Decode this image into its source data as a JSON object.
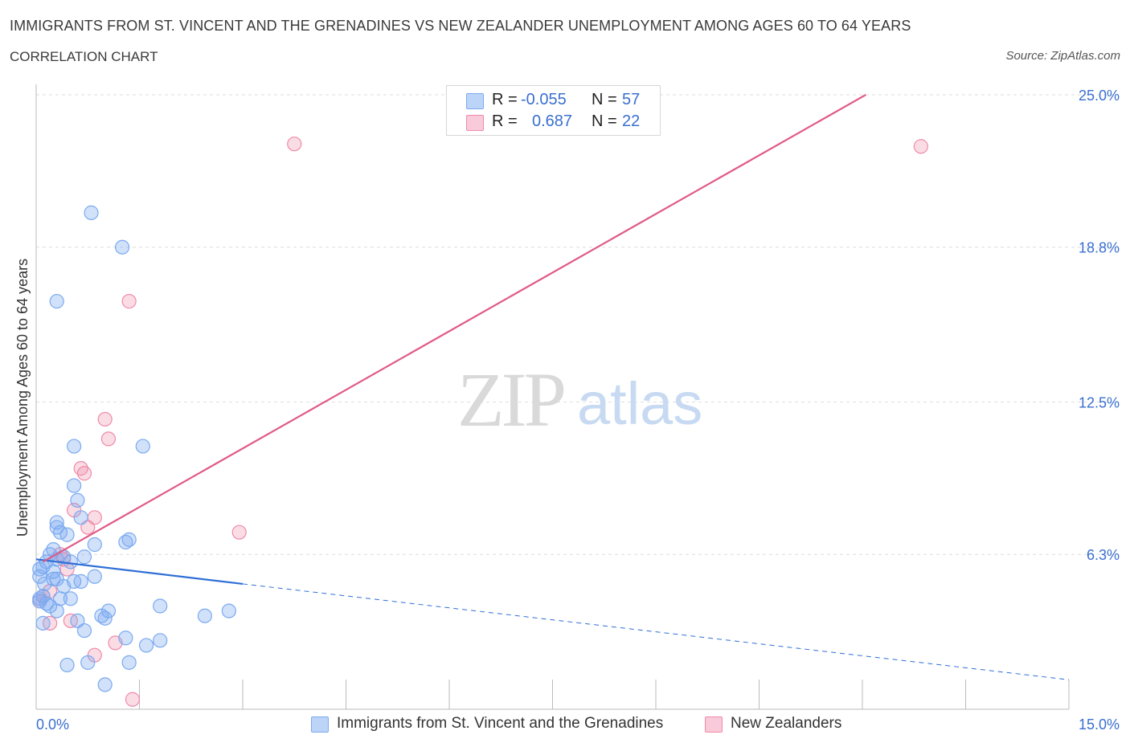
{
  "header": {
    "title": "IMMIGRANTS FROM ST. VINCENT AND THE GRENADINES VS NEW ZEALANDER UNEMPLOYMENT AMONG AGES 60 TO 64 YEARS",
    "subtitle": "CORRELATION CHART",
    "source": "Source: ZipAtlas.com"
  },
  "watermark": {
    "zip": "ZIP",
    "atlas": "atlas"
  },
  "legend": {
    "rows": [
      {
        "r_label": "R =",
        "r_value": "-0.055",
        "n_label": "N =",
        "n_value": "57"
      },
      {
        "r_label": "R =",
        "r_value": "0.687",
        "n_label": "N =",
        "n_value": "22"
      }
    ]
  },
  "chart_data": {
    "type": "scatter",
    "title": "Immigrants from St. Vincent and the Grenadines vs New Zealander Unemployment Among Ages 60 to 64 Years",
    "xlabel": "",
    "ylabel": "Unemployment Among Ages 60 to 64 years",
    "xlim": [
      0,
      15
    ],
    "ylim": [
      0,
      25
    ],
    "x_tick_labels": [
      "0.0%",
      "15.0%"
    ],
    "y_ticks": [
      6.3,
      12.5,
      18.8,
      25.0
    ],
    "y_tick_labels": [
      "6.3%",
      "12.5%",
      "18.8%",
      "25.0%"
    ],
    "grid": true,
    "legend_position": "bottom",
    "series": [
      {
        "name": "Immigrants from St. Vincent and the Grenadines",
        "color": "#7aaaf0",
        "fill": "rgba(122,170,240,0.35)",
        "line_color": "#2f6fd6",
        "R": -0.055,
        "N": 57,
        "trend": {
          "x0": 0.0,
          "y0": 6.1,
          "x1": 3.0,
          "y1": 5.1,
          "x_dash_end": 15.0,
          "y_dash_end": 1.2
        },
        "points": [
          [
            0.8,
            20.2
          ],
          [
            1.25,
            18.8
          ],
          [
            0.3,
            16.6
          ],
          [
            0.55,
            10.7
          ],
          [
            1.55,
            10.7
          ],
          [
            0.55,
            9.1
          ],
          [
            0.6,
            8.5
          ],
          [
            0.3,
            7.6
          ],
          [
            0.3,
            7.4
          ],
          [
            0.45,
            7.1
          ],
          [
            0.35,
            7.2
          ],
          [
            0.65,
            7.8
          ],
          [
            0.85,
            6.7
          ],
          [
            1.35,
            6.9
          ],
          [
            1.3,
            6.8
          ],
          [
            0.25,
            6.5
          ],
          [
            0.2,
            6.3
          ],
          [
            0.4,
            6.2
          ],
          [
            0.7,
            6.2
          ],
          [
            0.15,
            6.0
          ],
          [
            0.3,
            6.1
          ],
          [
            0.5,
            6.0
          ],
          [
            0.05,
            5.7
          ],
          [
            0.1,
            5.8
          ],
          [
            0.25,
            5.6
          ],
          [
            0.05,
            5.4
          ],
          [
            0.3,
            5.3
          ],
          [
            0.55,
            5.2
          ],
          [
            0.85,
            5.4
          ],
          [
            0.65,
            5.2
          ],
          [
            0.25,
            5.3
          ],
          [
            0.1,
            4.6
          ],
          [
            0.35,
            4.5
          ],
          [
            0.5,
            4.5
          ],
          [
            0.05,
            4.4
          ],
          [
            0.15,
            4.3
          ],
          [
            0.2,
            4.2
          ],
          [
            0.3,
            4.0
          ],
          [
            0.1,
            3.5
          ],
          [
            0.6,
            3.6
          ],
          [
            0.7,
            3.2
          ],
          [
            0.95,
            3.8
          ],
          [
            1.05,
            4.0
          ],
          [
            1.0,
            3.7
          ],
          [
            1.8,
            4.2
          ],
          [
            2.45,
            3.8
          ],
          [
            2.8,
            4.0
          ],
          [
            1.3,
            2.9
          ],
          [
            1.8,
            2.8
          ],
          [
            1.6,
            2.6
          ],
          [
            0.45,
            1.8
          ],
          [
            0.75,
            1.9
          ],
          [
            1.35,
            1.9
          ],
          [
            1.0,
            1.0
          ],
          [
            0.05,
            4.5
          ],
          [
            0.12,
            5.1
          ],
          [
            0.4,
            5.0
          ]
        ]
      },
      {
        "name": "New Zealanders",
        "color": "#f08aa8",
        "fill": "rgba(240,138,168,0.30)",
        "line_color": "#e05b87",
        "R": 0.687,
        "N": 22,
        "trend": {
          "x0": 0.1,
          "y0": 6.0,
          "x1": 12.05,
          "y1": 25.0
        },
        "points": [
          [
            3.75,
            23.0
          ],
          [
            12.85,
            22.9
          ],
          [
            1.35,
            16.6
          ],
          [
            1.0,
            11.8
          ],
          [
            1.05,
            11.0
          ],
          [
            0.65,
            9.8
          ],
          [
            0.7,
            9.6
          ],
          [
            0.55,
            8.1
          ],
          [
            0.85,
            7.8
          ],
          [
            0.75,
            7.4
          ],
          [
            2.95,
            7.2
          ],
          [
            0.35,
            6.3
          ],
          [
            0.4,
            6.1
          ],
          [
            0.45,
            5.7
          ],
          [
            0.2,
            4.8
          ],
          [
            0.1,
            4.6
          ],
          [
            0.05,
            4.4
          ],
          [
            0.2,
            3.5
          ],
          [
            0.5,
            3.6
          ],
          [
            1.15,
            2.7
          ],
          [
            0.85,
            2.2
          ],
          [
            1.4,
            0.4
          ]
        ]
      }
    ]
  }
}
